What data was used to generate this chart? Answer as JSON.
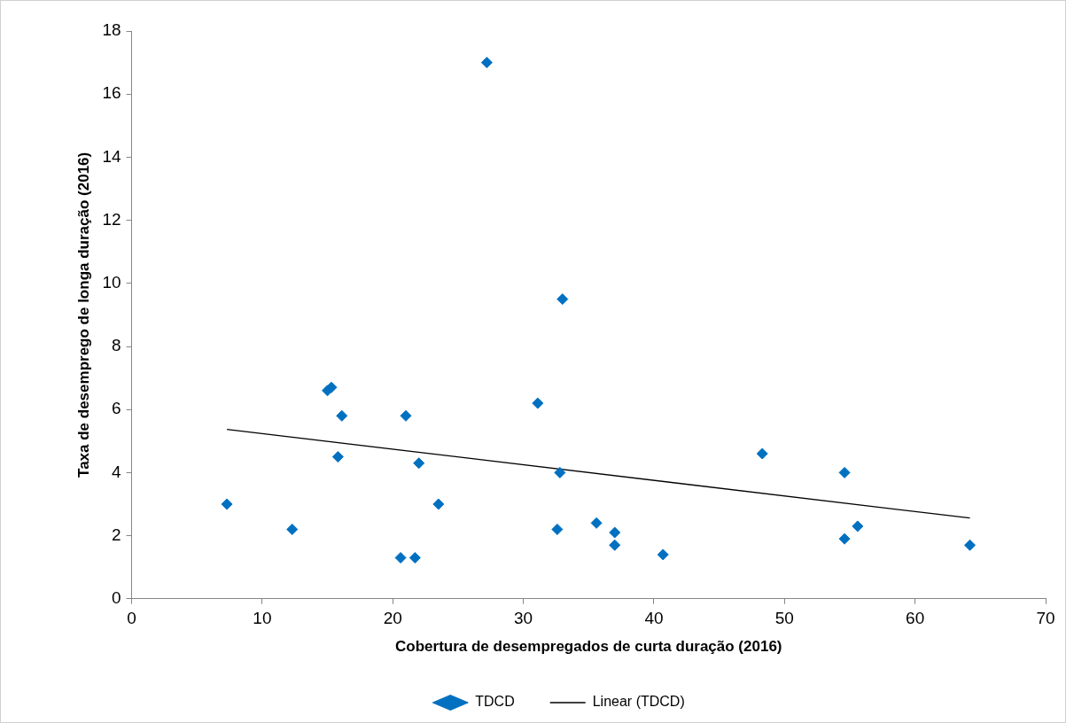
{
  "chart_data": {
    "type": "scatter",
    "xlabel": "Cobertura de desempregados de curta duração (2016)",
    "ylabel": "Taxa de desemprego de longa duração (2016)",
    "xlim": [
      0,
      70
    ],
    "xticks": [
      0,
      10,
      20,
      30,
      40,
      50,
      60,
      70
    ],
    "ylim": [
      0,
      18
    ],
    "yticks": [
      0,
      2,
      4,
      6,
      8,
      10,
      12,
      14,
      16,
      18
    ],
    "legend": "bottom",
    "series": [
      {
        "name": "TDCD",
        "type": "scatter",
        "marker": "diamond",
        "color": "#0070c0",
        "x": [
          7.3,
          12.3,
          15.0,
          15.3,
          15.8,
          16.1,
          20.6,
          21.0,
          21.7,
          22.0,
          23.5,
          27.2,
          31.1,
          32.6,
          32.8,
          33.0,
          35.6,
          37.0,
          37.0,
          40.7,
          48.3,
          54.6,
          54.6,
          55.6,
          64.2
        ],
        "values": [
          3.0,
          2.2,
          6.6,
          6.7,
          4.5,
          5.8,
          1.3,
          5.8,
          1.3,
          4.3,
          3.0,
          17.0,
          6.2,
          2.2,
          4.0,
          9.5,
          2.4,
          2.1,
          1.7,
          1.4,
          4.6,
          4.0,
          1.9,
          2.3,
          1.7
        ]
      },
      {
        "name": "Linear (TDCD)",
        "type": "line",
        "marker": "none",
        "color": "#000000",
        "x": [
          7.3,
          64.2
        ],
        "values": [
          5.37,
          2.56
        ]
      }
    ]
  }
}
